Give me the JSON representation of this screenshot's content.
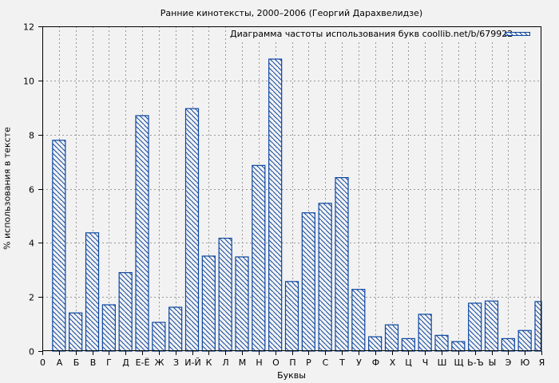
{
  "chart_data": {
    "type": "bar",
    "title": "Ранние кинотексты, 2000–2006 (Георгий Дарахвелидзе)",
    "xlabel": "Буквы",
    "ylabel": "% использования в тексте",
    "ylim": [
      0,
      12
    ],
    "yticks": [
      0,
      2,
      4,
      6,
      8,
      10,
      12
    ],
    "x_origin_tick": "0",
    "grid": true,
    "legend": {
      "label": "Диаграмма частоты использования букв coollib.net/b/679922",
      "position": "upper right"
    },
    "bar_color": "#0d47a1",
    "hatch": "diagonal",
    "categories": [
      "А",
      "Б",
      "В",
      "Г",
      "Д",
      "Е-Ё",
      "Ж",
      "З",
      "И-Й",
      "К",
      "Л",
      "М",
      "Н",
      "О",
      "П",
      "Р",
      "С",
      "Т",
      "У",
      "Ф",
      "Х",
      "Ц",
      "Ч",
      "Ш",
      "Щ",
      "Ь-Ъ",
      "Ы",
      "Э",
      "Ю",
      "Я"
    ],
    "values": [
      7.79,
      1.41,
      4.37,
      1.71,
      2.9,
      8.7,
      1.06,
      1.62,
      8.96,
      3.51,
      4.17,
      3.48,
      6.86,
      10.79,
      2.57,
      5.11,
      5.46,
      6.41,
      2.28,
      0.53,
      0.97,
      0.46,
      1.36,
      0.58,
      0.35,
      1.77,
      1.85,
      0.46,
      0.76,
      1.83
    ]
  }
}
